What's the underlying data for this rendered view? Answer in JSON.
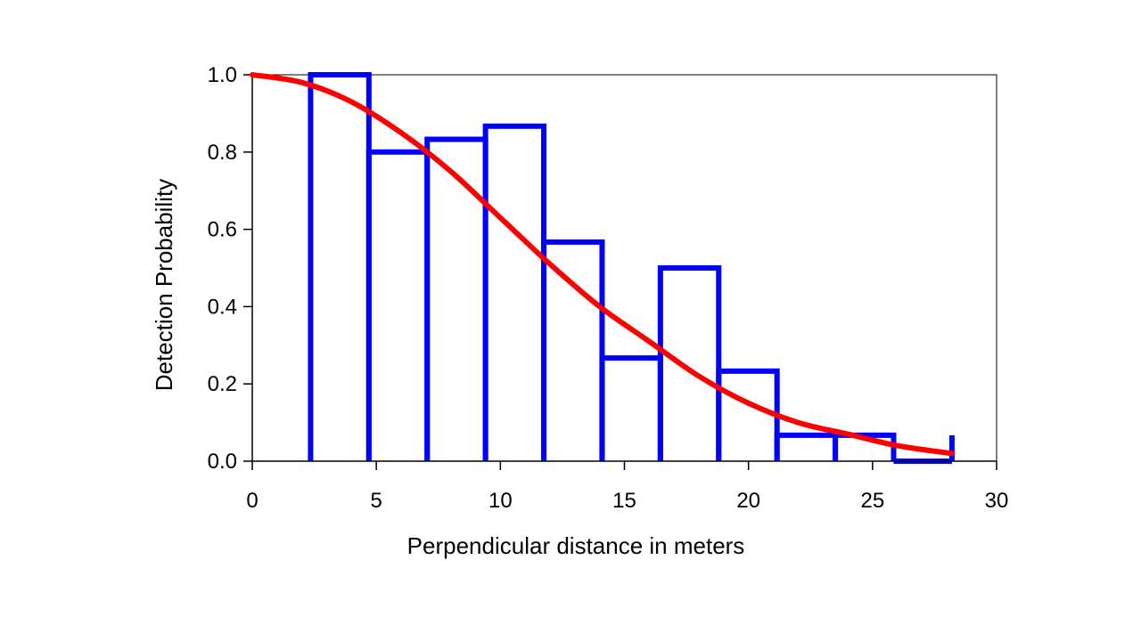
{
  "chart_data": {
    "type": "bar",
    "title": "",
    "xlabel": "Perpendicular distance in meters",
    "ylabel": "Detection Probability",
    "xlim": [
      0,
      30
    ],
    "ylim": [
      0,
      1.0
    ],
    "x_ticks": [
      0,
      5,
      10,
      15,
      20,
      25,
      30
    ],
    "x_tick_labels": [
      "0",
      "5",
      "10",
      "15",
      "20",
      "25",
      "30"
    ],
    "y_ticks": [
      0,
      0.2,
      0.4,
      0.6,
      0.8,
      1.0
    ],
    "y_tick_labels": [
      "0.0",
      "0.2",
      "0.4",
      "0.6",
      "0.8",
      "1.0"
    ],
    "grid": false,
    "legend": "none",
    "histogram": {
      "bin_edges": [
        2.35,
        4.7,
        7.05,
        9.4,
        11.75,
        14.1,
        16.45,
        18.8,
        21.15,
        23.5,
        25.85,
        28.2
      ],
      "values": [
        1.0,
        0.8,
        0.833,
        0.867,
        0.567,
        0.267,
        0.5,
        0.233,
        0.067,
        0.067,
        0.0,
        0.067
      ],
      "color": "#0000ff"
    },
    "fitted_curve": {
      "type": "line",
      "model": "half-normal",
      "x": [
        0,
        2,
        4,
        6,
        8,
        10,
        12,
        14,
        16,
        18,
        20,
        22,
        24,
        26,
        28.2
      ],
      "y": [
        1.0,
        0.98,
        0.93,
        0.85,
        0.75,
        0.63,
        0.51,
        0.4,
        0.31,
        0.22,
        0.15,
        0.1,
        0.07,
        0.04,
        0.02
      ],
      "color": "#ff0000"
    }
  }
}
